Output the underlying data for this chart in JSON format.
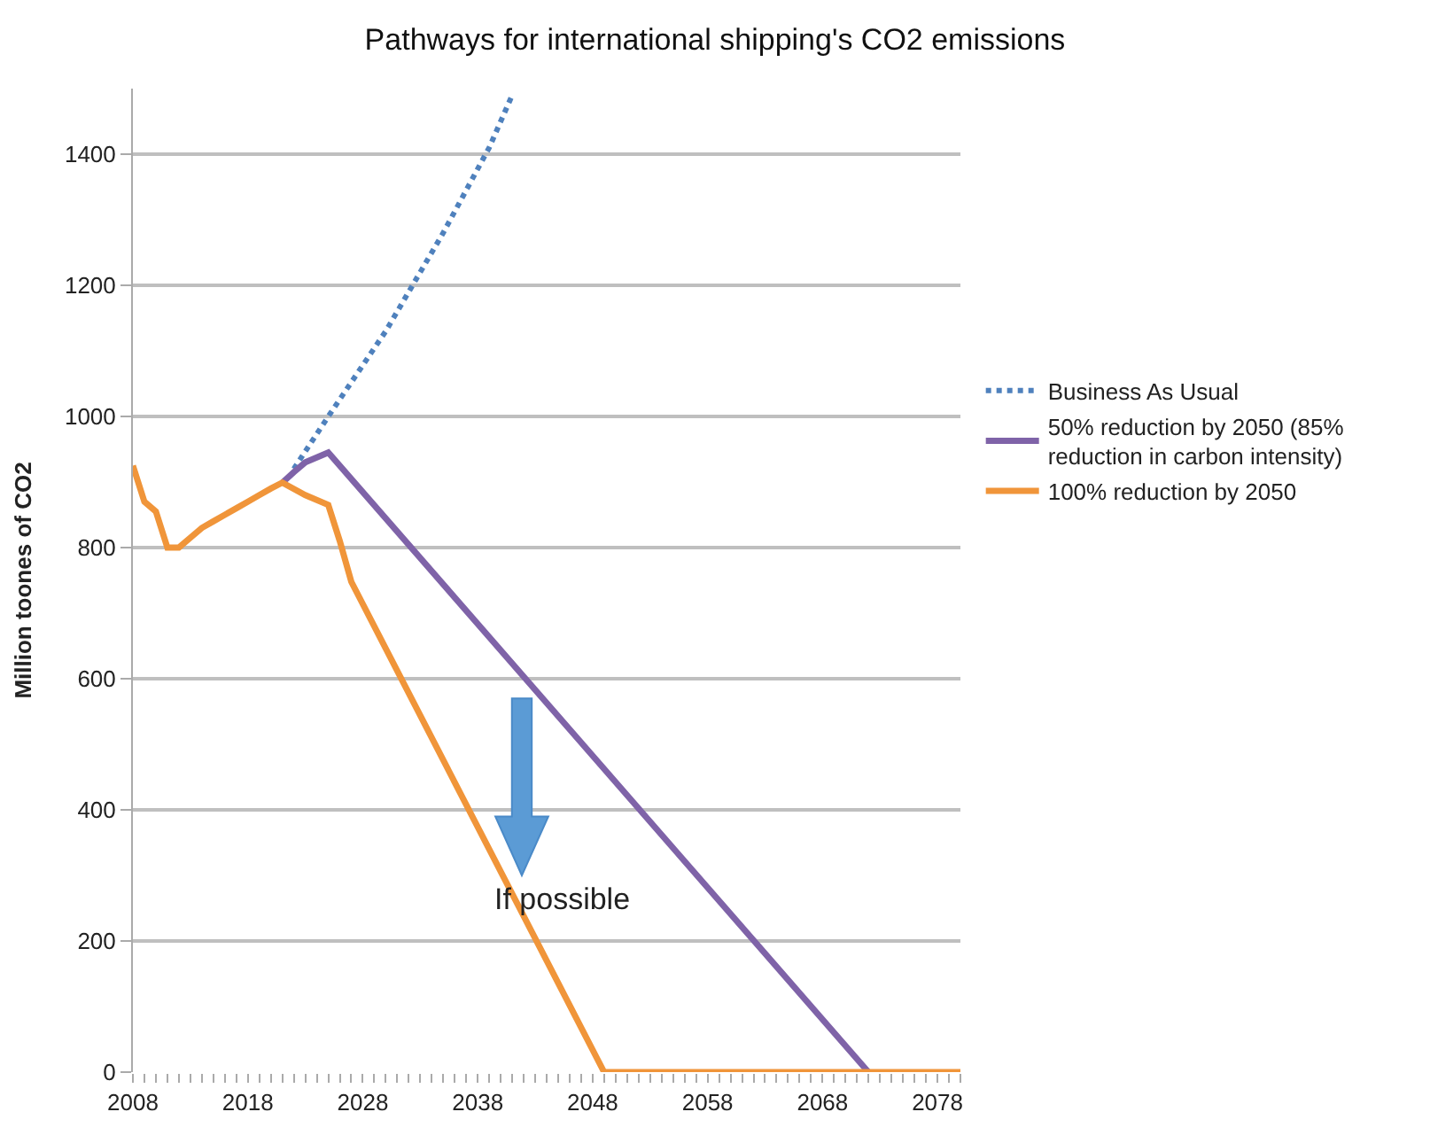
{
  "chart_data": {
    "type": "line",
    "title": "Pathways for international shipping's CO2 emissions",
    "ylabel": "Million toones of CO2",
    "xlim": [
      2008,
      2080
    ],
    "xticks": [
      2008,
      2018,
      2028,
      2038,
      2048,
      2058,
      2068,
      2078
    ],
    "ylim": [
      0,
      1500
    ],
    "yticks": [
      0,
      200,
      400,
      600,
      800,
      1000,
      1200,
      1400
    ],
    "grid": "y",
    "legend": "right",
    "marker": "none",
    "annotations": [
      "If possible"
    ],
    "series": [
      {
        "name": "Business As Usual",
        "color": "#4f81bd",
        "line_style": "dotted",
        "x": [
          2022,
          2025,
          2030,
          2035,
          2039,
          2041
        ],
        "values": [
          920,
          1000,
          1130,
          1280,
          1410,
          1490
        ]
      },
      {
        "name": "50% reduction by 2050 (85% reduction in carbon intensity)",
        "color": "#7f63a8",
        "line_style": "solid",
        "x": [
          2021,
          2022,
          2023,
          2025,
          2072
        ],
        "values": [
          899,
          915,
          930,
          945,
          0
        ]
      },
      {
        "name": "100% reduction by 2050",
        "color": "#f0953a",
        "line_style": "solid",
        "x": [
          2008,
          2009,
          2010,
          2011,
          2012,
          2013,
          2014,
          2015,
          2016,
          2017,
          2018,
          2019,
          2020,
          2021,
          2023,
          2025,
          2026,
          2027,
          2049,
          2080
        ],
        "values": [
          925,
          870,
          855,
          800,
          800,
          815,
          830,
          840,
          850,
          860,
          870,
          880,
          890,
          899,
          880,
          865,
          810,
          748,
          0,
          0
        ]
      }
    ]
  }
}
